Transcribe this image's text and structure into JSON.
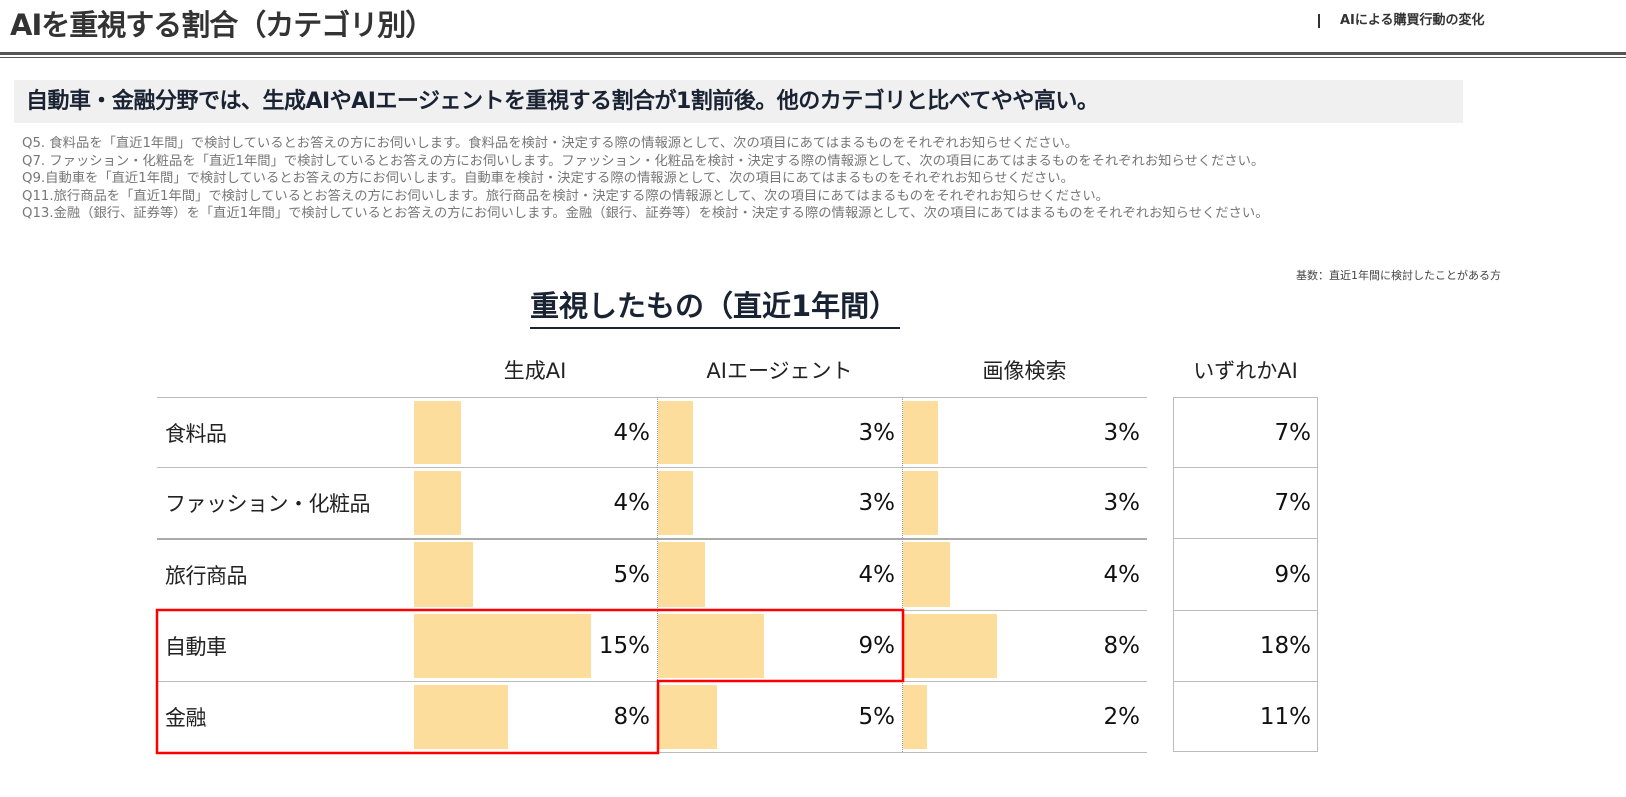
{
  "header": {
    "title": "AIを重視する割合（カテゴリ別）",
    "section": "AIによる購買行動の変化"
  },
  "headline": "自動車・金融分野では、生成AIやAIエージェントを重視する割合が1割前後。他のカテゴリと比べてやや高い。",
  "questions": [
    "Q5. 食料品を「直近1年間」で検討しているとお答えの方にお伺いします。食料品を検討・決定する際の情報源として、次の項目にあてはまるものをそれぞれお知らせください。",
    "Q7. ファッション・化粧品を「直近1年間」で検討しているとお答えの方にお伺いします。ファッション・化粧品を検討・決定する際の情報源として、次の項目にあてはまるものをそれぞれお知らせください。",
    "Q9.自動車を「直近1年間」で検討しているとお答えの方にお伺いします。自動車を検討・決定する際の情報源として、次の項目にあてはまるものをそれぞれお知らせください。",
    "Q11.旅行商品を「直近1年間」で検討しているとお答えの方にお伺いします。旅行商品を検討・決定する際の情報源として、次の項目にあてはまるものをそれぞれお知らせください。",
    "Q13.金融（銀行、証券等）を「直近1年間」で検討しているとお答えの方にお伺いします。金融（銀行、証券等）を検討・決定する際の情報源として、次の項目にあてはまるものをそれぞれお知らせください。"
  ],
  "base_note": "基数：直近1年間に検討したことがある方",
  "chart_data": {
    "type": "table",
    "title": "重視したもの（直近1年間）",
    "columns": [
      "生成AI",
      "AIエージェント",
      "画像検索",
      "いずれかAI"
    ],
    "rows": [
      {
        "label": "食料品",
        "values": [
          4,
          3,
          3,
          7
        ],
        "display": [
          "4%",
          "3%",
          "3%",
          "7%"
        ]
      },
      {
        "label": "ファッション・化粧品",
        "values": [
          4,
          3,
          3,
          7
        ],
        "display": [
          "4%",
          "3%",
          "3%",
          "7%"
        ]
      },
      {
        "label": "旅行商品",
        "values": [
          5,
          4,
          4,
          9
        ],
        "display": [
          "5%",
          "4%",
          "4%",
          "9%"
        ]
      },
      {
        "label": "自動車",
        "values": [
          15,
          9,
          8,
          18
        ],
        "display": [
          "15%",
          "9%",
          "8%",
          "18%"
        ]
      },
      {
        "label": "金融",
        "values": [
          8,
          5,
          2,
          11
        ],
        "display": [
          "8%",
          "5%",
          "2%",
          "11%"
        ]
      }
    ],
    "unit": "%",
    "bar_color": "#fddd9c",
    "highlight_color": "#ff0000"
  }
}
